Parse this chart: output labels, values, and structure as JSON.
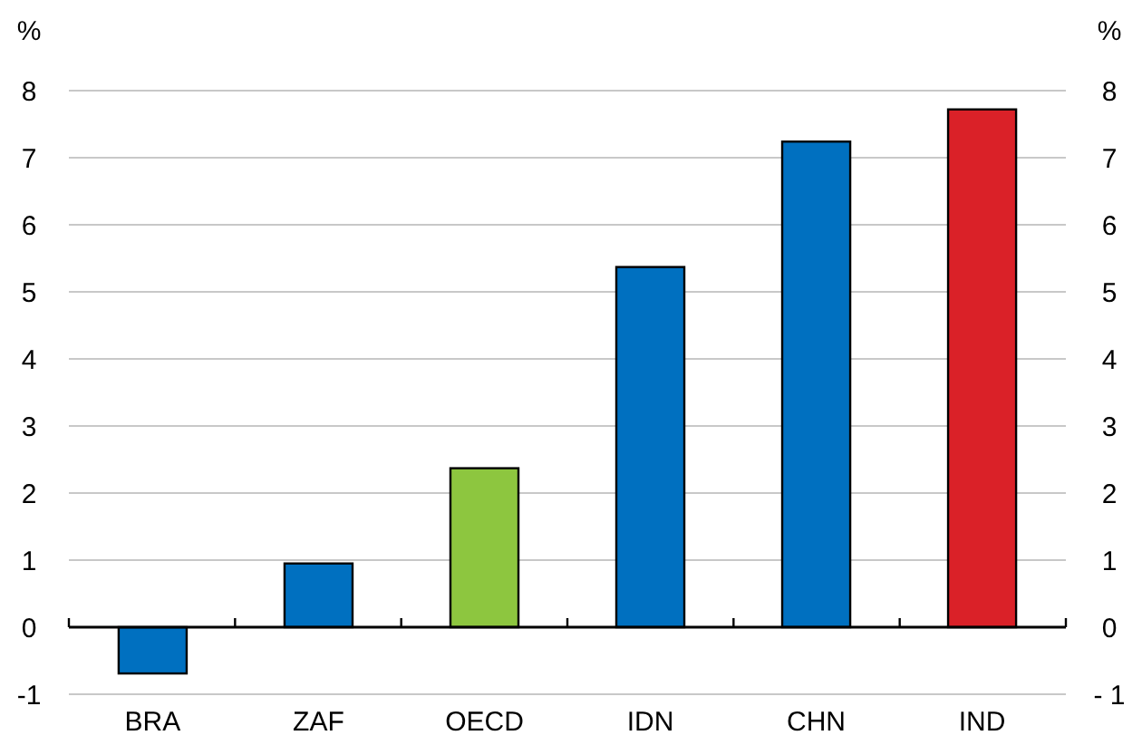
{
  "chart_data": {
    "type": "bar",
    "ylabel": "%",
    "y2label": "%",
    "categories": [
      "BRA",
      "ZAF",
      "OECD",
      "IDN",
      "CHN",
      "IND"
    ],
    "values": [
      -0.69,
      0.95,
      2.37,
      5.37,
      7.24,
      7.72
    ],
    "colors": [
      "#0070c0",
      "#0070c0",
      "#8dc63f",
      "#0070c0",
      "#0070c0",
      "#da2128"
    ],
    "ylim": [
      -1,
      8
    ],
    "yticks": [
      -1,
      0,
      1,
      2,
      3,
      4,
      5,
      6,
      7,
      8
    ],
    "y2lim": [
      -1,
      8
    ],
    "y2ticks": [
      {
        "value": -1,
        "label": "- 1"
      },
      0,
      1,
      2,
      3,
      4,
      5,
      6,
      7,
      8
    ],
    "grid": "y"
  }
}
